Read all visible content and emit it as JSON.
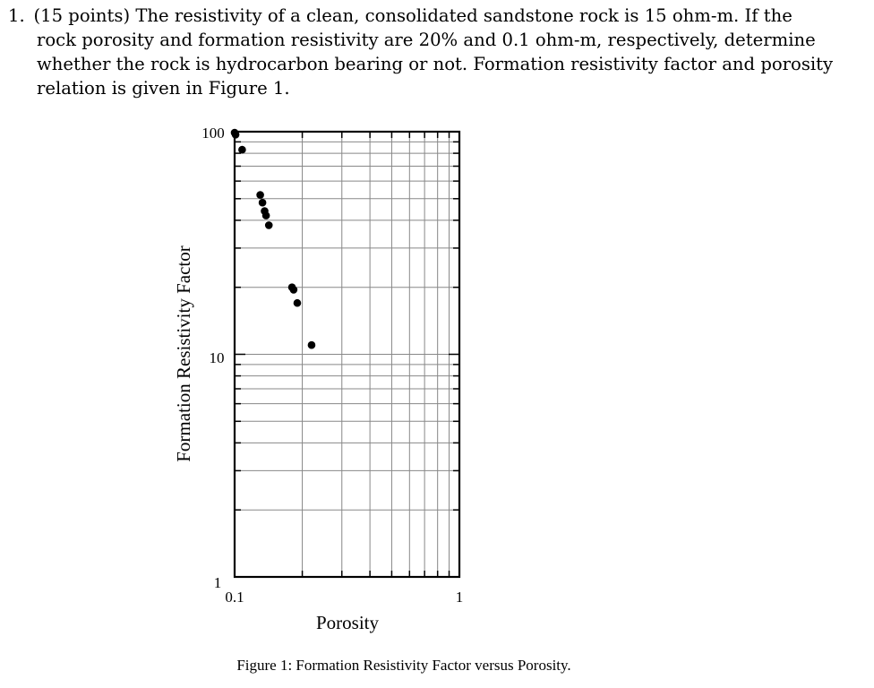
{
  "problem": {
    "lines": [
      "1. (15 points) The resistivity of a clean, consolidated sandstone rock is 15 ohm-m. If the",
      "rock porosity and formation resistivity are 20% and 0.1 ohm-m, respectively, determine",
      "whether the rock is hydrocarbon bearing or not. Formation resistivity factor and porosity",
      "relation is given in Figure 1."
    ]
  },
  "figure": {
    "caption": "Figure 1: Formation Resistivity Factor versus Porosity."
  },
  "chart_data": {
    "type": "scatter",
    "xlabel": "Porosity",
    "ylabel": "Formation Resistivity Factor",
    "xscale": "log",
    "yscale": "log",
    "xlim": [
      0.1,
      1
    ],
    "ylim": [
      1,
      100
    ],
    "x_tick_labels": [
      "0.1",
      "1"
    ],
    "y_tick_labels": [
      "1",
      "10",
      "100"
    ],
    "grid": true,
    "series": [
      {
        "color": "#000000",
        "x": [
          0.1,
          0.101,
          0.108,
          0.13,
          0.133,
          0.136,
          0.138,
          0.142,
          0.18,
          0.183,
          0.19,
          0.22
        ],
        "y": [
          99,
          97,
          83,
          52,
          48,
          44,
          42,
          38,
          20,
          19.5,
          17,
          11
        ]
      }
    ]
  }
}
